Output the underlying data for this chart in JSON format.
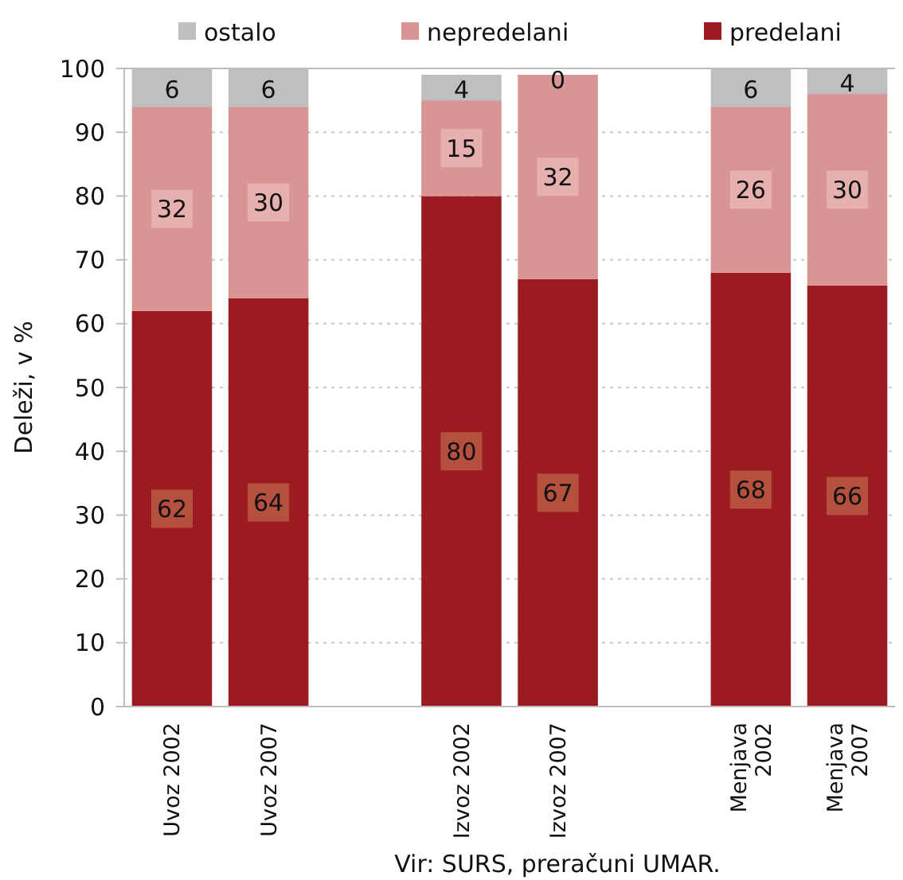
{
  "chart_data": {
    "type": "bar",
    "stacked": true,
    "ylabel": "Deleži, v %",
    "categories": [
      "Uvoz 2002",
      "Uvoz 2007",
      null,
      "Izvoz 2002",
      "Izvoz 2007",
      null,
      "Menjava 2002",
      "Menjava 2007"
    ],
    "series": [
      {
        "name": "predelani",
        "color": "#9b1b20",
        "values": [
          62,
          64,
          null,
          80,
          67,
          null,
          68,
          66
        ]
      },
      {
        "name": "nepredelani",
        "color": "#d99594",
        "values": [
          32,
          30,
          null,
          15,
          32,
          null,
          26,
          30
        ]
      },
      {
        "name": "ostalo",
        "color": "#bfbfbf",
        "values": [
          6,
          6,
          null,
          4,
          0,
          null,
          6,
          4
        ]
      }
    ],
    "ylim": [
      0,
      100
    ],
    "yticks": [
      0,
      10,
      20,
      30,
      40,
      50,
      60,
      70,
      80,
      90,
      100
    ],
    "grid": "y",
    "legend": "top",
    "data_labels": true,
    "annotations": [
      "Vir: SURS, preračuni UMAR."
    ]
  }
}
